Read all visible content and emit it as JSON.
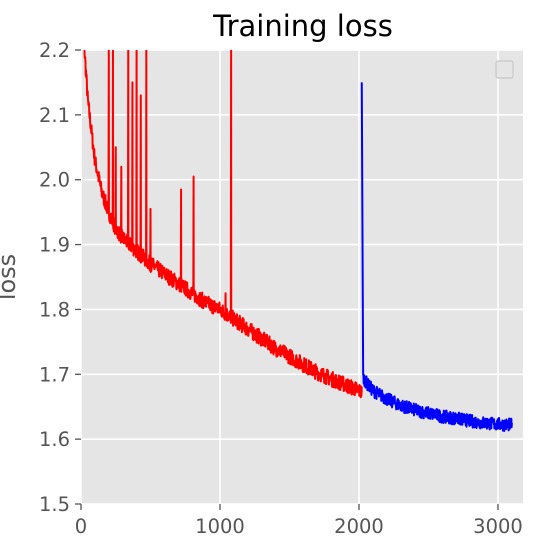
{
  "chart_data": {
    "type": "line",
    "title": "Training loss",
    "xlabel": "",
    "ylabel": "loss",
    "xlim": [
      0,
      3180
    ],
    "ylim": [
      1.5,
      2.2
    ],
    "x_ticks": [
      0,
      1000,
      2000,
      3000
    ],
    "y_ticks": [
      1.5,
      1.6,
      1.7,
      1.8,
      1.9,
      2.0,
      2.1,
      2.2
    ],
    "grid": true,
    "legend": {
      "placement": "top-right",
      "entries": []
    },
    "colors": {
      "background": "#E5E5E5",
      "grid": "#FFFFFF",
      "series_1": "#FF0000",
      "series_2": "#0000FF"
    },
    "series": [
      {
        "color": "#FF0000",
        "x": [
          0,
          50,
          100,
          150,
          200,
          250,
          300,
          350,
          400,
          450,
          500,
          600,
          700,
          800,
          900,
          1000,
          1100,
          1200,
          1300,
          1400,
          1500,
          1600,
          1700,
          1800,
          1900,
          2000,
          2020
        ],
        "y": [
          2.28,
          2.12,
          2.03,
          1.98,
          1.95,
          1.925,
          1.91,
          1.9,
          1.89,
          1.88,
          1.87,
          1.855,
          1.84,
          1.825,
          1.81,
          1.8,
          1.785,
          1.77,
          1.755,
          1.74,
          1.728,
          1.715,
          1.703,
          1.693,
          1.684,
          1.675,
          1.672
        ],
        "noise": 0.012,
        "spikes": [
          {
            "x": 200,
            "y": 2.22
          },
          {
            "x": 230,
            "y": 2.22
          },
          {
            "x": 250,
            "y": 2.05
          },
          {
            "x": 290,
            "y": 2.02
          },
          {
            "x": 340,
            "y": 2.22
          },
          {
            "x": 370,
            "y": 2.15
          },
          {
            "x": 400,
            "y": 2.22
          },
          {
            "x": 430,
            "y": 2.13
          },
          {
            "x": 470,
            "y": 2.22
          },
          {
            "x": 500,
            "y": 1.955
          },
          {
            "x": 720,
            "y": 1.985
          },
          {
            "x": 810,
            "y": 2.005
          },
          {
            "x": 1040,
            "y": 1.825
          },
          {
            "x": 1080,
            "y": 2.22
          }
        ]
      },
      {
        "color": "#0000FF",
        "x": [
          2020,
          2030,
          2060,
          2100,
          2200,
          2300,
          2400,
          2500,
          2600,
          2700,
          2800,
          2900,
          3000,
          3100
        ],
        "y": [
          2.15,
          1.695,
          1.685,
          1.675,
          1.662,
          1.652,
          1.645,
          1.64,
          1.635,
          1.632,
          1.628,
          1.625,
          1.623,
          1.622
        ],
        "noise": 0.01,
        "spikes": []
      }
    ]
  }
}
